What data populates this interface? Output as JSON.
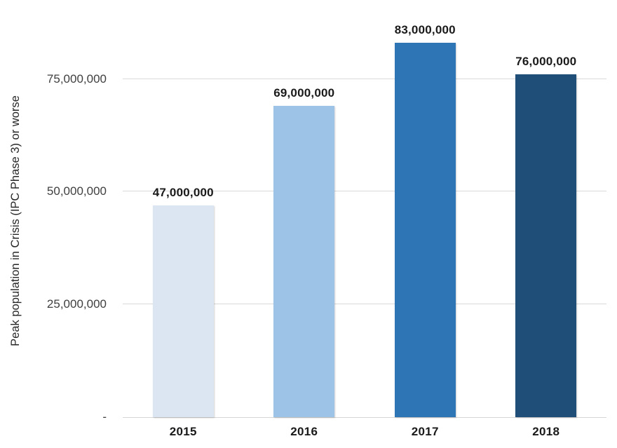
{
  "chart_data": {
    "type": "bar",
    "title": "",
    "xlabel": "",
    "ylabel": "Peak population in Crisis (IPC Phase 3) or worse",
    "categories": [
      "2015",
      "2016",
      "2017",
      "2018"
    ],
    "values": [
      47000000,
      69000000,
      83000000,
      76000000
    ],
    "data_labels": [
      "47,000,000",
      "69,000,000",
      "83,000,000",
      "76,000,000"
    ],
    "bar_colors": [
      "#dce6f2",
      "#9dc3e6",
      "#2e75b6",
      "#1f4e79"
    ],
    "yticks": [
      {
        "value": 0,
        "label": "-"
      },
      {
        "value": 25000000,
        "label": "25,000,000"
      },
      {
        "value": 50000000,
        "label": "50,000,000"
      },
      {
        "value": 75000000,
        "label": "75,000,000"
      }
    ],
    "ylim": [
      0,
      92500000
    ],
    "grid": true,
    "gridline_color": "#d9d9d9",
    "legend": "none"
  }
}
